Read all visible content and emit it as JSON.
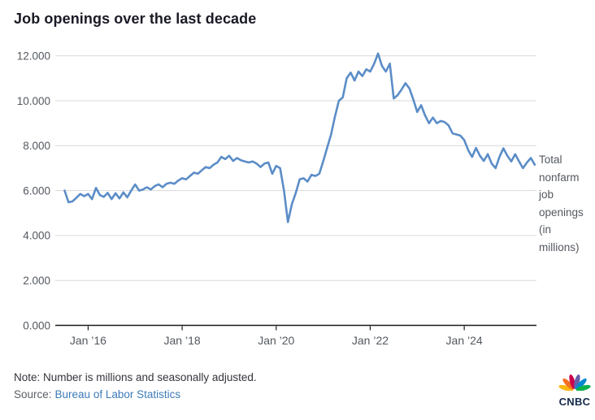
{
  "title": "Job openings over the last decade",
  "annotation": {
    "text": "Total nonfarm job openings (in millions)"
  },
  "footer": {
    "note": "Note: Number is millions and seasonally adjusted.",
    "source_prefix": "Source:",
    "source_link": "Bureau of Labor Statistics"
  },
  "logo": {
    "text": "CNBC",
    "wordmark_color": "#13284b",
    "peacock_colors": [
      "#fcb711",
      "#f37021",
      "#cc004c",
      "#6460aa",
      "#0089d0",
      "#0db14b"
    ]
  },
  "chart_data": {
    "type": "line",
    "title": "Job openings over the last decade",
    "series_name": "Total nonfarm job openings (in millions)",
    "frequency": "monthly",
    "x_start": "Jul 2015",
    "x_end": "Jul 2025",
    "values": [
      6.0,
      5.48,
      5.52,
      5.68,
      5.85,
      5.75,
      5.85,
      5.62,
      6.12,
      5.8,
      5.72,
      5.9,
      5.62,
      5.88,
      5.65,
      5.92,
      5.7,
      6.0,
      6.27,
      6.0,
      6.05,
      6.15,
      6.05,
      6.2,
      6.28,
      6.15,
      6.3,
      6.35,
      6.3,
      6.45,
      6.55,
      6.5,
      6.65,
      6.8,
      6.75,
      6.9,
      7.05,
      7.0,
      7.15,
      7.25,
      7.5,
      7.4,
      7.55,
      7.32,
      7.45,
      7.35,
      7.3,
      7.25,
      7.3,
      7.2,
      7.05,
      7.2,
      7.25,
      6.75,
      7.1,
      7.0,
      6.0,
      4.6,
      5.4,
      5.9,
      6.5,
      6.55,
      6.4,
      6.7,
      6.65,
      6.75,
      7.3,
      7.9,
      8.5,
      9.3,
      10.0,
      10.15,
      11.0,
      11.25,
      10.9,
      11.3,
      11.1,
      11.4,
      11.3,
      11.65,
      12.1,
      11.55,
      11.3,
      11.65,
      10.1,
      10.25,
      10.5,
      10.78,
      10.55,
      10.05,
      9.5,
      9.8,
      9.35,
      9.0,
      9.25,
      9.0,
      9.1,
      9.05,
      8.9,
      8.55,
      8.5,
      8.45,
      8.25,
      7.8,
      7.5,
      7.9,
      7.55,
      7.32,
      7.62,
      7.2,
      7.0,
      7.5,
      7.88,
      7.55,
      7.3,
      7.62,
      7.3,
      7.0,
      7.25,
      7.45,
      7.15
    ],
    "x_ticks": [
      {
        "label": "Jan ’16",
        "month_index": 6
      },
      {
        "label": "Jan ’18",
        "month_index": 30
      },
      {
        "label": "Jan ’20",
        "month_index": 54
      },
      {
        "label": "Jan ’22",
        "month_index": 78
      },
      {
        "label": "Jan ’24",
        "month_index": 102
      }
    ],
    "y_axis": {
      "values": [
        0,
        2,
        4,
        6,
        8,
        10,
        12
      ],
      "labels": [
        "0.000",
        "2.000",
        "4.000",
        "6.000",
        "8.000",
        "10.000",
        "12.000"
      ]
    },
    "ylim": [
      0,
      12.8
    ],
    "grid": true,
    "legend_position": "right-annotation",
    "line_color": "#5b8dc7",
    "grid_color": "#d9d9d9",
    "axis_color": "#1a1a1a",
    "tick_label_color": "#53585f"
  }
}
